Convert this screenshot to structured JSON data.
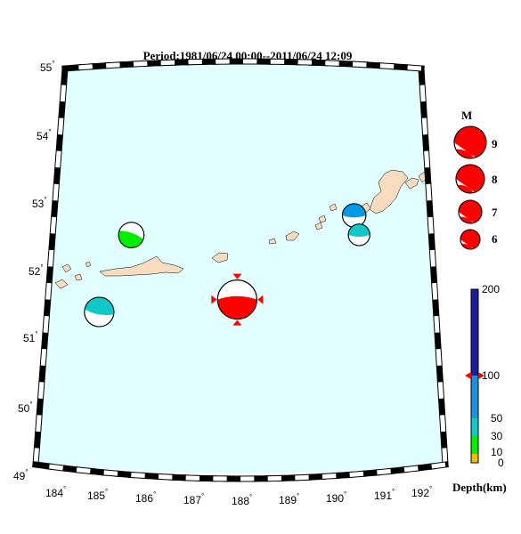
{
  "title": "Period:1981/06/24 00:00--2011/06/24 12:09",
  "lat_labels": [
    {
      "deg": "49",
      "sym": "°"
    },
    {
      "deg": "50",
      "sym": "°"
    },
    {
      "deg": "51",
      "sym": "°"
    },
    {
      "deg": "52",
      "sym": "°"
    },
    {
      "deg": "53",
      "sym": "°"
    },
    {
      "deg": "54",
      "sym": "°"
    },
    {
      "deg": "55",
      "sym": "°"
    }
  ],
  "lon_labels": [
    {
      "deg": "184",
      "sym": "°"
    },
    {
      "deg": "185",
      "sym": "°"
    },
    {
      "deg": "186",
      "sym": "°"
    },
    {
      "deg": "187",
      "sym": "°"
    },
    {
      "deg": "188",
      "sym": "°"
    },
    {
      "deg": "189",
      "sym": "°"
    },
    {
      "deg": "190",
      "sym": "°"
    },
    {
      "deg": "191",
      "sym": "°"
    },
    {
      "deg": "192",
      "sym": "°"
    }
  ],
  "magnitude_legend": {
    "title": "M",
    "items": [
      "9",
      "8",
      "7",
      "6"
    ]
  },
  "depth_scale": {
    "label": "Depth(km)",
    "ticks": [
      "0",
      "10",
      "30",
      "50",
      "100",
      "200"
    ]
  },
  "colors": {
    "ocean": "#e2ffff",
    "land": "#f7dcbf",
    "compression_red": "#ff0000",
    "green": "#00ee00",
    "cyan": "#10c8c8",
    "blue": "#0099e6",
    "depth_bar_dark": "#1c1ca0"
  },
  "events": [
    {
      "lon": 185.4,
      "lat": 52.45,
      "depth_km": 25,
      "mag": 6.3,
      "color": "green",
      "marker": false
    },
    {
      "lon": 184.75,
      "lat": 51.25,
      "depth_km": 40,
      "mag": 6.5,
      "color": "cyan",
      "marker": false
    },
    {
      "lon": 187.9,
      "lat": 51.5,
      "depth_km": 100,
      "mag": 7.0,
      "color": "compression_red",
      "marker": true
    },
    {
      "lon": 190.65,
      "lat": 52.75,
      "depth_km": 60,
      "mag": 6.2,
      "color": "blue",
      "marker": false
    },
    {
      "lon": 190.75,
      "lat": 52.45,
      "depth_km": 40,
      "mag": 6.1,
      "color": "cyan",
      "marker": false
    }
  ],
  "depth_marker_km": 100
}
